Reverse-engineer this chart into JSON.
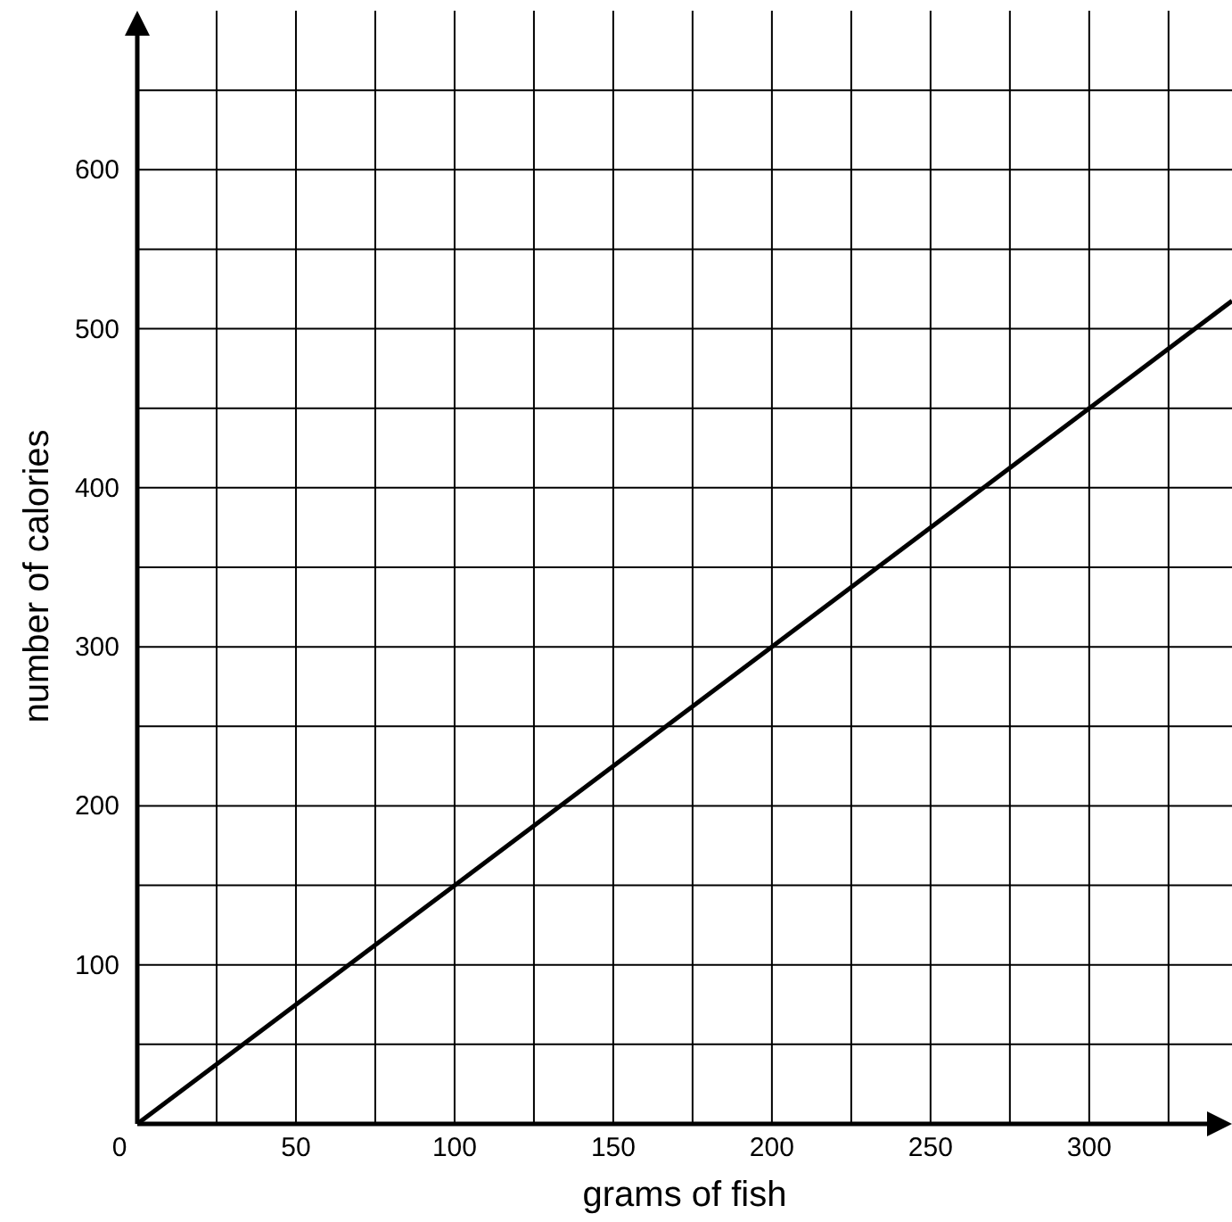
{
  "chart_data": {
    "type": "line",
    "xlabel": "grams of fish",
    "ylabel": "number of calories",
    "xlim": [
      0,
      345
    ],
    "ylim": [
      0,
      700
    ],
    "xticks": [
      {
        "value": 0,
        "label": "0"
      },
      {
        "value": 25,
        "label": null
      },
      50,
      {
        "value": 75,
        "label": null
      },
      100,
      {
        "value": 125,
        "label": null
      },
      150,
      {
        "value": 175,
        "label": null
      },
      200,
      {
        "value": 225,
        "label": null
      },
      250,
      {
        "value": 275,
        "label": null
      },
      300,
      {
        "value": 325,
        "label": null
      }
    ],
    "yticks": [
      {
        "value": 0,
        "label": null
      },
      {
        "value": 50,
        "label": null
      },
      100,
      {
        "value": 150,
        "label": null
      },
      200,
      {
        "value": 250,
        "label": null
      },
      300,
      {
        "value": 350,
        "label": null
      },
      400,
      {
        "value": 450,
        "label": null
      },
      500,
      {
        "value": 550,
        "label": null
      },
      600,
      {
        "value": 650,
        "label": null
      }
    ],
    "grid": true,
    "series": [
      {
        "color": "#000000",
        "x": [
          0,
          345
        ],
        "values": [
          0,
          517.5
        ]
      }
    ]
  }
}
